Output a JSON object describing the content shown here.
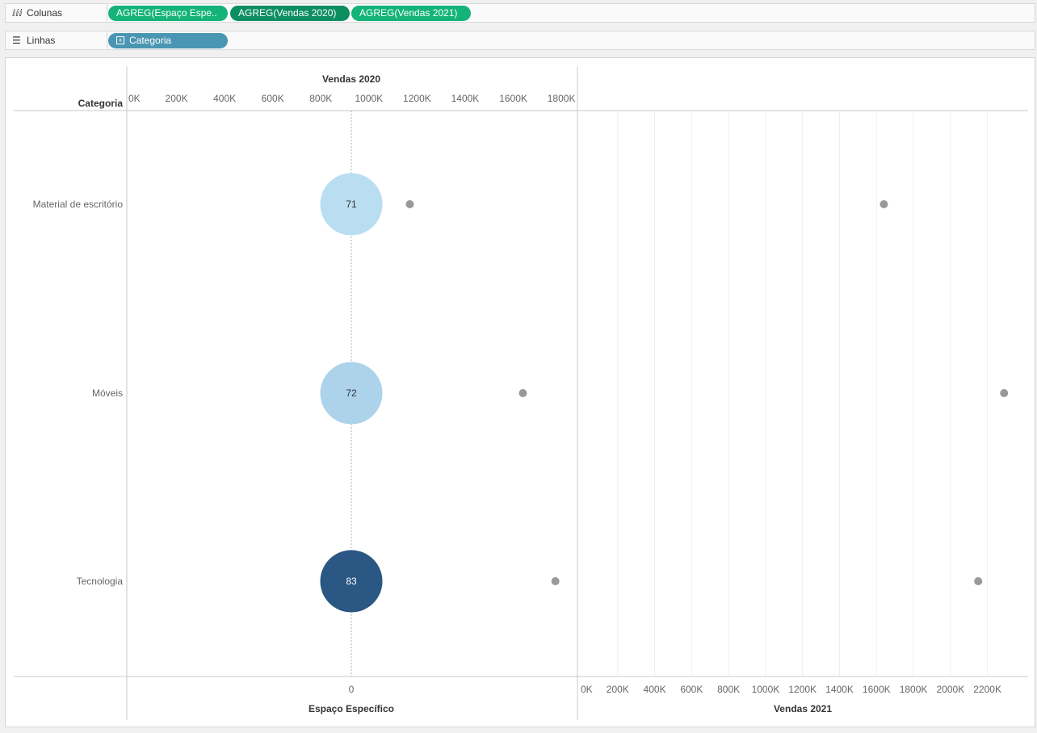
{
  "shelves": {
    "columns": {
      "label": "Colunas",
      "icon": "columns-icon",
      "pills": [
        "AGREG(Espaço Espe..",
        "AGREG(Vendas 2020)",
        "AGREG(Vendas 2021)"
      ]
    },
    "rows": {
      "label": "Linhas",
      "icon": "rows-list-icon",
      "pills": [
        "Categoria"
      ]
    }
  },
  "colors": {
    "pill_green": "#13b37a",
    "pill_green_dark": "#0d8e61",
    "pill_blue": "#4996b2",
    "point_gray": "#999999",
    "circle_light": "#b9ddf1",
    "circle_mid": "#acd3ea",
    "circle_dark": "#2a5783"
  },
  "chart_data": {
    "type": "scatter",
    "row_header": "Categoria",
    "categories": [
      "Material de escritório",
      "Móveis",
      "Tecnologia"
    ],
    "panes": [
      {
        "name": "Espaço Específico",
        "type": "circle",
        "values": [
          71,
          72,
          83
        ],
        "value_labels": [
          "71",
          "72",
          "83"
        ],
        "tick_labels": [
          "0"
        ]
      },
      {
        "name": "Vendas 2020",
        "type": "scatter",
        "values": [
          1170000,
          1640000,
          1775000
        ],
        "xlim": [
          0,
          1850000
        ],
        "tick_labels": [
          "0K",
          "200K",
          "400K",
          "600K",
          "800K",
          "1000K",
          "1200K",
          "1400K",
          "1600K",
          "1800K"
        ],
        "tick_values": [
          0,
          200000,
          400000,
          600000,
          800000,
          1000000,
          1200000,
          1400000,
          1600000,
          1800000
        ]
      },
      {
        "name": "Vendas 2021",
        "type": "scatter",
        "values": [
          1640000,
          2290000,
          2150000
        ],
        "xlim": [
          0,
          2420000
        ],
        "tick_labels": [
          "0K",
          "200K",
          "400K",
          "600K",
          "800K",
          "1000K",
          "1200K",
          "1400K",
          "1600K",
          "1800K",
          "2000K",
          "2200K"
        ],
        "tick_values": [
          0,
          200000,
          400000,
          600000,
          800000,
          1000000,
          1200000,
          1400000,
          1600000,
          1800000,
          2000000,
          2200000
        ]
      }
    ],
    "grid": true
  }
}
